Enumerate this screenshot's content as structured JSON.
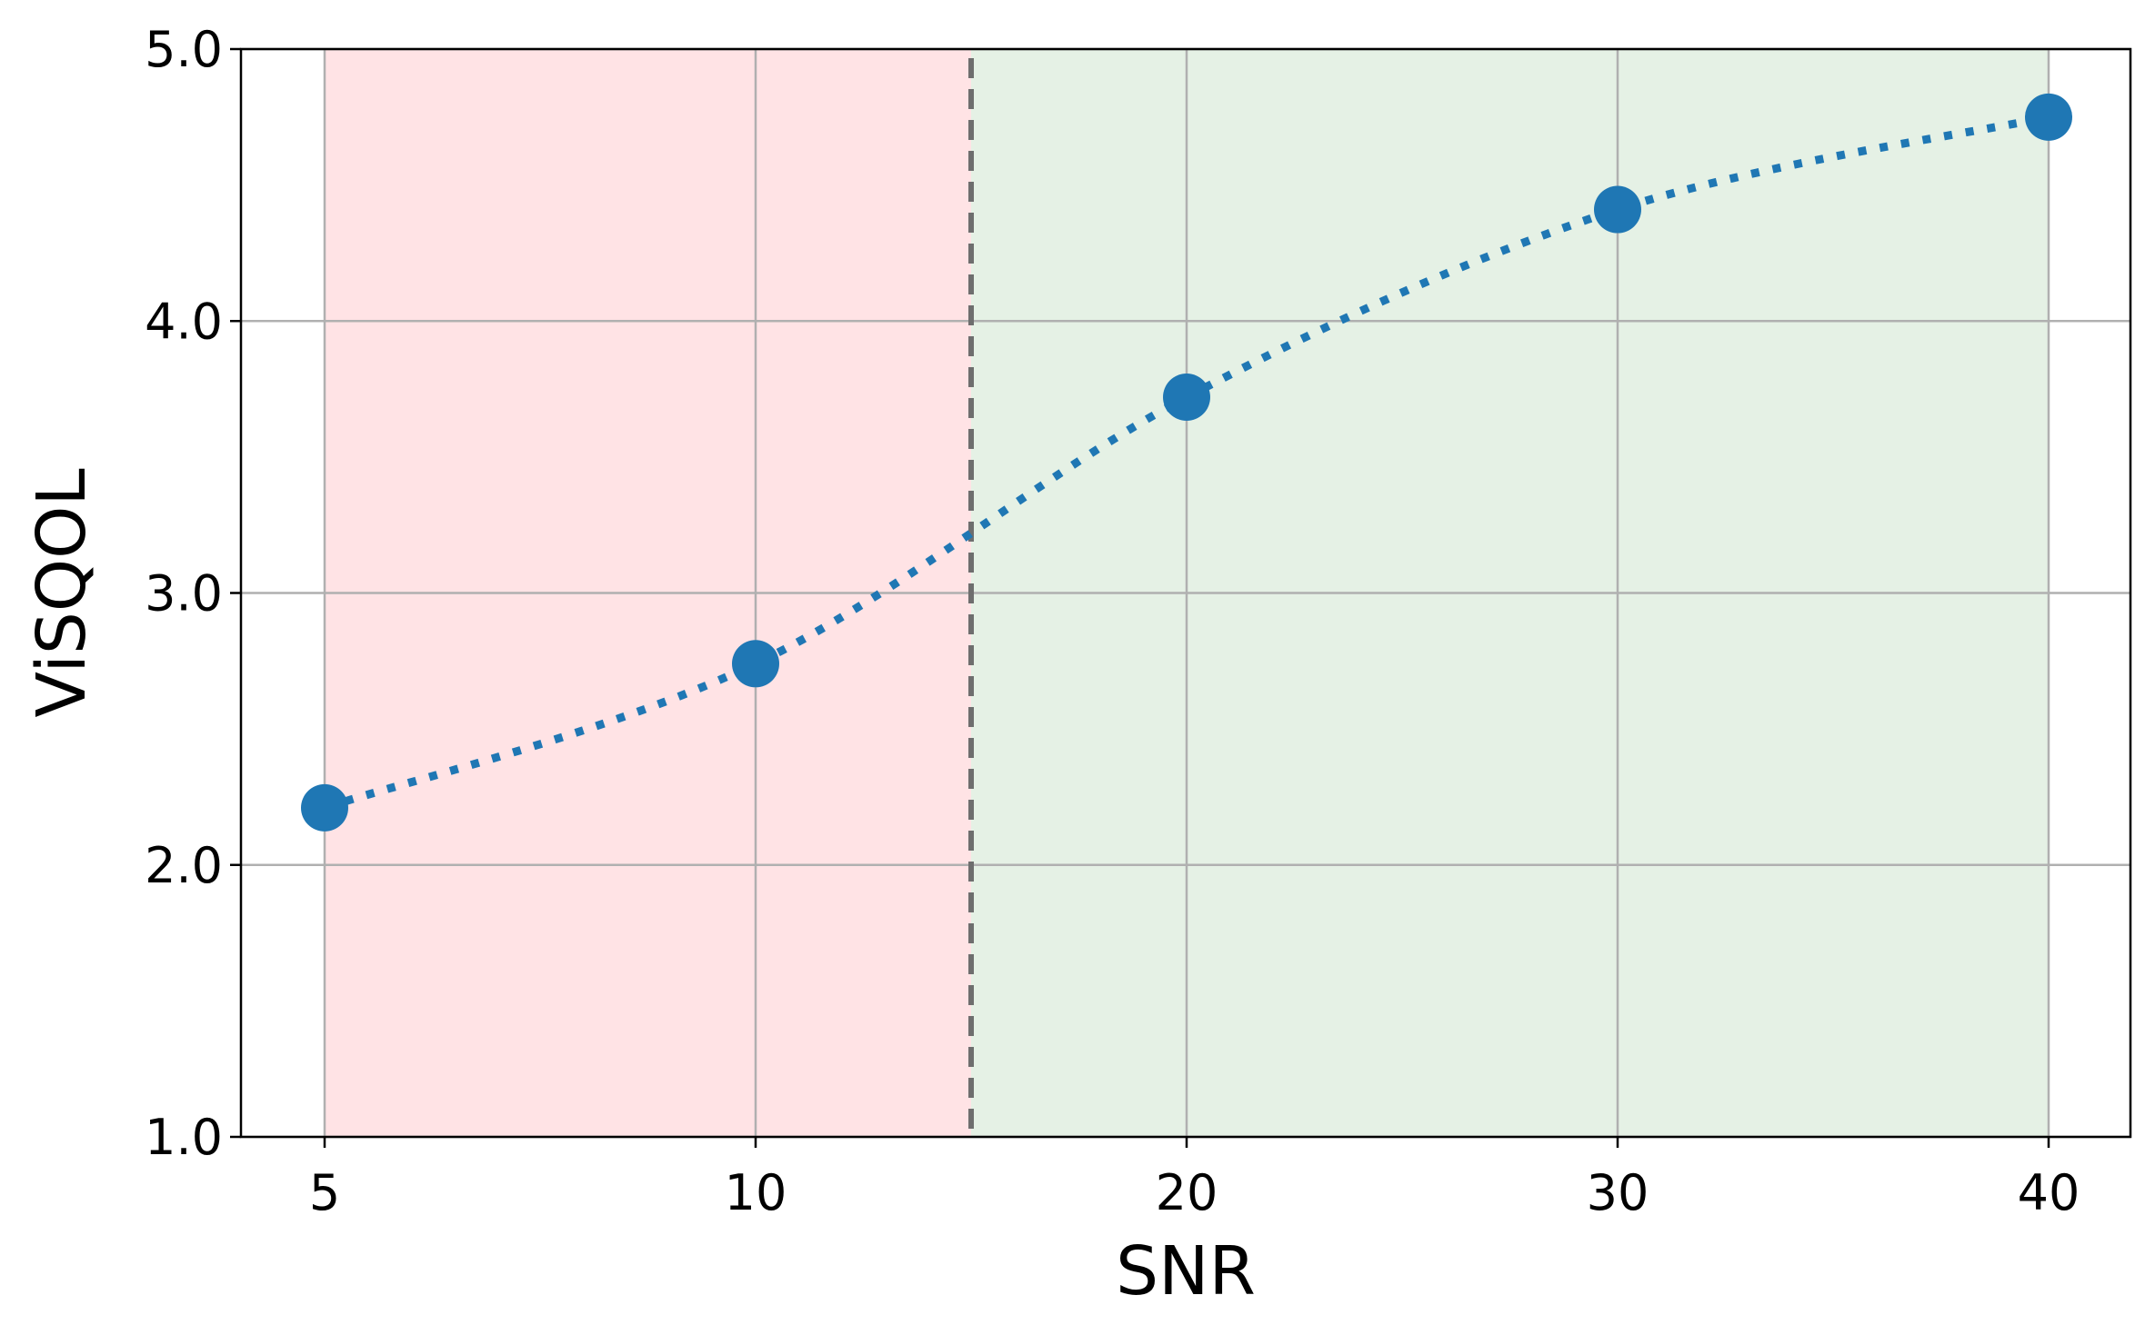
{
  "chart_data": {
    "type": "line",
    "xlabel": "SNR",
    "ylabel": "ViSQOL",
    "x_positions": [
      5,
      10,
      20,
      30,
      40
    ],
    "x_tick_labels": [
      "5",
      "10",
      "20",
      "30",
      "40"
    ],
    "y_ticks": [
      1.0,
      2.0,
      3.0,
      4.0,
      5.0
    ],
    "y_tick_labels": [
      "1.0",
      "2.0",
      "3.0",
      "4.0",
      "5.0"
    ],
    "ylim": [
      1.0,
      5.0
    ],
    "grid": true,
    "series": [
      {
        "x": [
          5,
          10,
          20,
          30,
          40
        ],
        "values": [
          2.21,
          2.74,
          3.72,
          4.41,
          4.75
        ],
        "color": "#1f77b4",
        "line_style": "dotted",
        "marker": "circle"
      }
    ],
    "regions": [
      {
        "from": 5,
        "to": 15,
        "color": "#ffe3e5"
      },
      {
        "from": 15,
        "to": 40,
        "color": "#e5f1e5"
      }
    ],
    "threshold_marker": {
      "at": 15,
      "color": "#6e6e6e",
      "line_style": "dashed"
    }
  }
}
